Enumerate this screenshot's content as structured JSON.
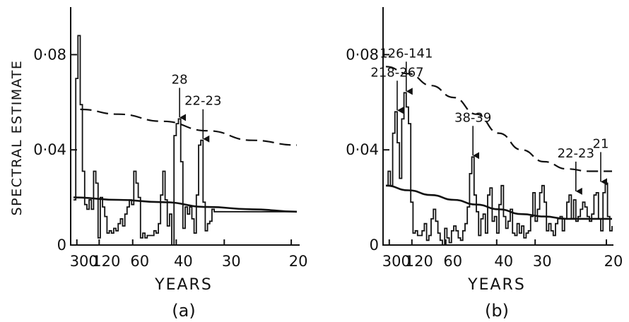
{
  "chart_data": [
    {
      "type": "line",
      "panel_label": "(a)",
      "xlabel": "YEARS",
      "ylabel": "SPECTRAL ESTIMATE",
      "ylim": [
        0,
        0.1
      ],
      "y_ticks": [
        "0",
        "0·04",
        "0·08"
      ],
      "x_ticks": [
        "300",
        "120",
        "60",
        "40",
        "30",
        "20"
      ],
      "series": [
        {
          "style": "step",
          "x": [
            0,
            1,
            2,
            3,
            4,
            5,
            6,
            7,
            8,
            9,
            10,
            11,
            12,
            13,
            14,
            15,
            16,
            17,
            18,
            19,
            20,
            21,
            22,
            23,
            24,
            25,
            26,
            27,
            28,
            29,
            30,
            31,
            32,
            33,
            34,
            35,
            36,
            37,
            38,
            39,
            40,
            41,
            42,
            43,
            44,
            45,
            46,
            47,
            48,
            49,
            50,
            51,
            52,
            53,
            54,
            55,
            56,
            57,
            58,
            59,
            60,
            61,
            62,
            63,
            64,
            65,
            66,
            67,
            68,
            69,
            70,
            71,
            72,
            73,
            74,
            75,
            76,
            77,
            78,
            79,
            80,
            81,
            82,
            83,
            84,
            85,
            86,
            87,
            88,
            89,
            90,
            91,
            92,
            93,
            94,
            95,
            96,
            97,
            98,
            99,
            100
          ],
          "values": [
            0.019,
            0.07,
            0.088,
            0.059,
            0.031,
            0.017,
            0.015,
            0.019,
            0.015,
            0.031,
            0.026,
            0.003,
            0.02,
            0.016,
            0.012,
            0.005,
            0.006,
            0.005,
            0.007,
            0.006,
            0.009,
            0.011,
            0.008,
            0.013,
            0.016,
            0.019,
            0.017,
            0.031,
            0.026,
            0.02,
            0.003,
            0.005,
            0.003,
            0.004,
            0.004,
            0.004,
            0.006,
            0.005,
            0.009,
            0.021,
            0.031,
            0.019,
            0.008,
            0.013,
            0.0,
            0.046,
            0.051,
            0.053,
            0.035,
            0.007,
            0.016,
            0.013,
            0.016,
            0.011,
            0.005,
            0.021,
            0.042,
            0.044,
            0.018,
            0.006,
            0.009,
            0.01,
            0.015,
            0.014,
            0.014,
            0.014,
            0.014,
            0.014,
            0.014,
            0.014,
            0.014,
            0.014,
            0.014,
            0.014,
            0.014,
            0.014,
            0.014,
            0.014,
            0.014,
            0.014,
            0.014,
            0.014,
            0.014,
            0.014,
            0.014,
            0.014,
            0.014,
            0.014,
            0.014,
            0.014,
            0.014,
            0.014,
            0.014,
            0.014,
            0.014,
            0.014,
            0.014,
            0.014,
            0.014,
            0.014,
            0.014
          ]
        },
        {
          "style": "smooth",
          "x": [
            0,
            20,
            40,
            60,
            80,
            100
          ],
          "values": [
            0.02,
            0.019,
            0.018,
            0.016,
            0.015,
            0.014
          ]
        },
        {
          "style": "dashed",
          "x": [
            3,
            20,
            40,
            60,
            80,
            100
          ],
          "values": [
            0.057,
            0.055,
            0.052,
            0.048,
            0.044,
            0.042
          ]
        }
      ],
      "annotations": [
        {
          "text": "28",
          "x": 47.5,
          "y": 0.053
        },
        {
          "text": "22-23",
          "x": 58,
          "y": 0.044
        }
      ]
    },
    {
      "type": "line",
      "panel_label": "(b)",
      "xlabel": "YEARS",
      "ylim": [
        0,
        0.1
      ],
      "y_ticks": [
        "0",
        "0·04",
        "0·08"
      ],
      "x_ticks": [
        "300",
        "120",
        "60",
        "40",
        "30",
        "20"
      ],
      "series": [
        {
          "style": "step",
          "x": [
            0,
            1,
            2,
            3,
            4,
            5,
            6,
            7,
            8,
            9,
            10,
            11,
            12,
            13,
            14,
            15,
            16,
            17,
            18,
            19,
            20,
            21,
            22,
            23,
            24,
            25,
            26,
            27,
            28,
            29,
            30,
            31,
            32,
            33,
            34,
            35,
            36,
            37,
            38,
            39,
            40,
            41,
            42,
            43,
            44,
            45,
            46,
            47,
            48,
            49,
            50,
            51,
            52,
            53,
            54,
            55,
            56,
            57,
            58,
            59,
            60,
            61,
            62,
            63,
            64,
            65,
            66,
            67,
            68,
            69,
            70,
            71,
            72,
            73,
            74,
            75,
            76,
            77,
            78,
            79,
            80,
            81,
            82,
            83,
            84,
            85,
            86,
            87,
            88,
            89,
            90,
            91,
            92,
            93,
            94,
            95,
            96,
            97,
            98,
            99,
            100
          ],
          "values": [
            0.025,
            0.031,
            0.025,
            0.047,
            0.056,
            0.043,
            0.028,
            0.053,
            0.064,
            0.058,
            0.051,
            0.018,
            0.005,
            0.006,
            0.004,
            0.004,
            0.006,
            0.009,
            0.002,
            0.004,
            0.011,
            0.015,
            0.01,
            0.005,
            0.002,
            0.0,
            0.007,
            0.003,
            0.001,
            0.006,
            0.008,
            0.006,
            0.003,
            0.002,
            0.006,
            0.009,
            0.016,
            0.03,
            0.037,
            0.021,
            0.014,
            0.004,
            0.011,
            0.013,
            0.005,
            0.021,
            0.024,
            0.01,
            0.012,
            0.005,
            0.017,
            0.025,
            0.012,
            0.007,
            0.01,
            0.015,
            0.005,
            0.004,
            0.009,
            0.005,
            0.008,
            0.003,
            0.005,
            0.006,
            0.012,
            0.022,
            0.01,
            0.015,
            0.022,
            0.025,
            0.018,
            0.006,
            0.009,
            0.006,
            0.004,
            0.009,
            0.011,
            0.012,
            0.006,
            0.011,
            0.018,
            0.021,
            0.011,
            0.019,
            0.01,
            0.012,
            0.015,
            0.018,
            0.016,
            0.012,
            0.01,
            0.013,
            0.021,
            0.022,
            0.011,
            0.006,
            0.022,
            0.026,
            0.012,
            0.006,
            0.008
          ]
        },
        {
          "style": "smooth",
          "x": [
            0,
            10,
            20,
            30,
            40,
            50,
            60,
            70,
            80,
            90,
            100
          ],
          "values": [
            0.025,
            0.023,
            0.021,
            0.019,
            0.017,
            0.015,
            0.013,
            0.012,
            0.011,
            0.011,
            0.011
          ]
        },
        {
          "style": "dashed",
          "x": [
            0,
            10,
            20,
            30,
            40,
            50,
            60,
            70,
            80,
            90,
            100
          ],
          "values": [
            0.075,
            0.072,
            0.067,
            0.062,
            0.055,
            0.047,
            0.04,
            0.035,
            0.032,
            0.031,
            0.031
          ]
        }
      ],
      "annotations": [
        {
          "text": "218-267",
          "x": 5,
          "y": 0.056
        },
        {
          "text": "126-141",
          "x": 9,
          "y": 0.064
        },
        {
          "text": "38-39",
          "x": 38.5,
          "y": 0.037
        },
        {
          "text": "22-23",
          "x": 84,
          "y": 0.022
        },
        {
          "text": "21",
          "x": 95,
          "y": 0.026
        }
      ]
    }
  ]
}
